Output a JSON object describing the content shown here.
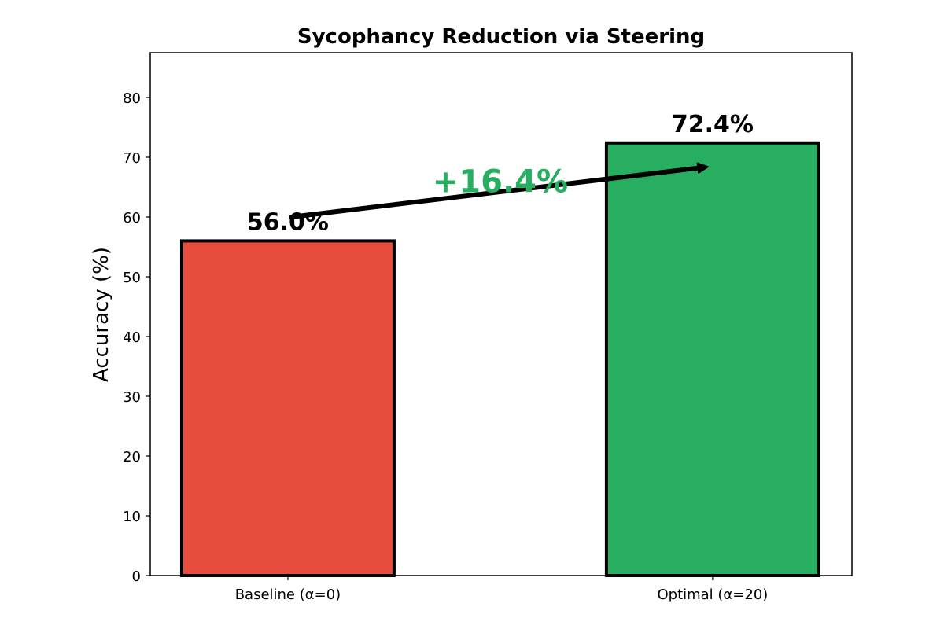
{
  "chart_data": {
    "type": "bar",
    "title": "Sycophancy Reduction via Steering",
    "xlabel": "",
    "ylabel": "Accuracy (%)",
    "categories": [
      "Baseline (α=0)",
      "Optimal (α=20)"
    ],
    "values": [
      56.0,
      72.4
    ],
    "value_labels": [
      "56.0%",
      "72.4%"
    ],
    "colors": [
      "#e74c3c",
      "#27ae60"
    ],
    "edge_color": "#000000",
    "ylim": [
      0,
      87.5
    ],
    "yticks": [
      0,
      10,
      20,
      30,
      40,
      50,
      60,
      70,
      80
    ],
    "grid": false,
    "annotation": {
      "text": "+16.4%",
      "color": "#27ae60",
      "arrow_from": [
        0,
        60
      ],
      "arrow_to": [
        1,
        68.4
      ],
      "text_pos": [
        0.5,
        66
      ]
    }
  }
}
